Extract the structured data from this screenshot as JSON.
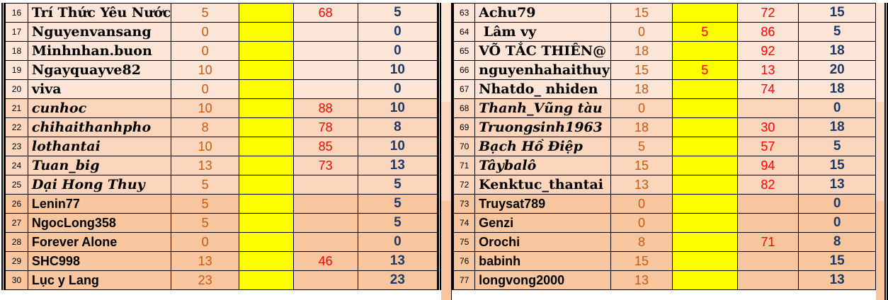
{
  "app": {
    "type": "spreadsheet-leaderboard"
  },
  "colors": {
    "row_light": "#fce4d6",
    "row_medium": "#fbd6bc",
    "row_dark": "#f7c69e",
    "cell_yellow": "#ffff00",
    "text_orange": "#c55a11",
    "text_red": "#ff0000",
    "text_blue": "#1f3864",
    "gridline": "#000000"
  },
  "tables": [
    {
      "id": "left",
      "rows": [
        {
          "num": "16",
          "name": "Trí Thức Yêu Nước",
          "font": "serif",
          "value": "5",
          "bonus": "",
          "rate": "68",
          "total": "5",
          "shade": "light"
        },
        {
          "num": "17",
          "name": "Nguyenvansang",
          "font": "serif",
          "value": "0",
          "bonus": "",
          "rate": "",
          "total": "0",
          "shade": "light"
        },
        {
          "num": "18",
          "name": "Minhnhan.buon",
          "font": "serif",
          "value": "0",
          "bonus": "",
          "rate": "",
          "total": "0",
          "shade": "light"
        },
        {
          "num": "19",
          "name": "Ngayquayve82",
          "font": "serif",
          "value": "10",
          "bonus": "",
          "rate": "",
          "total": "10",
          "shade": "light"
        },
        {
          "num": "20",
          "name": "viva",
          "font": "serif",
          "value": "0",
          "bonus": "",
          "rate": "",
          "total": "0",
          "shade": "light"
        },
        {
          "num": "21",
          "name": "cunhoc",
          "font": "serif-italic",
          "value": "10",
          "bonus": "",
          "rate": "88",
          "total": "10",
          "shade": "medium"
        },
        {
          "num": "22",
          "name": "chihaithanhpho",
          "font": "serif-italic",
          "value": "8",
          "bonus": "",
          "rate": "78",
          "total": "8",
          "shade": "medium"
        },
        {
          "num": "23",
          "name": "lothantai",
          "font": "serif-italic",
          "value": "10",
          "bonus": "",
          "rate": "85",
          "total": "10",
          "shade": "medium"
        },
        {
          "num": "24",
          "name": "Tuan_big",
          "font": "serif-italic",
          "value": "13",
          "bonus": "",
          "rate": "73",
          "total": "13",
          "shade": "medium"
        },
        {
          "num": "25",
          "name": "Dại Hong Thuy",
          "font": "serif-italic",
          "value": "5",
          "bonus": "",
          "rate": "",
          "total": "5",
          "shade": "medium"
        },
        {
          "num": "26",
          "name": "Lenin77",
          "font": "sans",
          "value": "5",
          "bonus": "",
          "rate": "",
          "total": "5",
          "shade": "dark"
        },
        {
          "num": "27",
          "name": "NgocLong358",
          "font": "sans",
          "value": "5",
          "bonus": "",
          "rate": "",
          "total": "5",
          "shade": "dark"
        },
        {
          "num": "28",
          "name": "Forever Alone",
          "font": "sans",
          "value": "0",
          "bonus": "",
          "rate": "",
          "total": "0",
          "shade": "dark"
        },
        {
          "num": "29",
          "name": "SHC998",
          "font": "sans",
          "value": "13",
          "bonus": "",
          "rate": "46",
          "total": "13",
          "shade": "dark"
        },
        {
          "num": "30",
          "name": "Lục y Lang",
          "font": "sans",
          "value": "23",
          "bonus": "",
          "rate": "",
          "total": "23",
          "shade": "dark"
        }
      ]
    },
    {
      "id": "right",
      "rows": [
        {
          "num": "63",
          "name": "Achu79",
          "font": "serif",
          "value": "15",
          "bonus": "",
          "rate": "72",
          "total": "15",
          "shade": "light"
        },
        {
          "num": "64",
          "name": " Lâm vy",
          "font": "serif",
          "value": "0",
          "bonus": "5",
          "rate": "86",
          "total": "5",
          "shade": "light"
        },
        {
          "num": "65",
          "name": "VÕ TẮC THIÊN@",
          "font": "serif",
          "value": "18",
          "bonus": "",
          "rate": "92",
          "total": "18",
          "shade": "light"
        },
        {
          "num": "66",
          "name": "nguyenhahaithuy",
          "font": "serif",
          "value": "15",
          "bonus": "5",
          "rate": "13",
          "total": "20",
          "shade": "light"
        },
        {
          "num": "67",
          "name": "Nhatdo_ nhiden",
          "font": "serif",
          "value": "18",
          "bonus": "",
          "rate": "74",
          "total": "18",
          "shade": "light"
        },
        {
          "num": "68",
          "name": "Thanh_Vũng tàu",
          "font": "serif-italic",
          "value": "0",
          "bonus": "",
          "rate": "",
          "total": "0",
          "shade": "medium"
        },
        {
          "num": "69",
          "name": "Truongsinh1963",
          "font": "serif-italic",
          "value": "18",
          "bonus": "",
          "rate": "30",
          "total": "18",
          "shade": "medium"
        },
        {
          "num": "70",
          "name": "Bạch Hồ Điệp",
          "font": "serif-italic",
          "value": "5",
          "bonus": "",
          "rate": "57",
          "total": "5",
          "shade": "medium"
        },
        {
          "num": "71",
          "name": "Tâybalô",
          "font": "serif-italic",
          "value": "15",
          "bonus": "",
          "rate": "94",
          "total": "15",
          "shade": "medium"
        },
        {
          "num": "72",
          "name": "Kenktuc_thantai",
          "font": "serif",
          "value": "13",
          "bonus": "",
          "rate": "82",
          "total": "13",
          "shade": "medium"
        },
        {
          "num": "73",
          "name": "Truysat789",
          "font": "sans",
          "value": "0",
          "bonus": "",
          "rate": "",
          "total": "0",
          "shade": "dark"
        },
        {
          "num": "74",
          "name": "Genzi",
          "font": "sans",
          "value": "0",
          "bonus": "",
          "rate": "",
          "total": "0",
          "shade": "dark"
        },
        {
          "num": "75",
          "name": "Orochi",
          "font": "sans",
          "value": "8",
          "bonus": "",
          "rate": "71",
          "total": "8",
          "shade": "dark"
        },
        {
          "num": "76",
          "name": "babinh",
          "font": "sans",
          "value": "15",
          "bonus": "",
          "rate": "",
          "total": "15",
          "shade": "dark"
        },
        {
          "num": "77",
          "name": "longvong2000",
          "font": "sans",
          "value": "13",
          "bonus": "",
          "rate": "",
          "total": "13",
          "shade": "dark"
        }
      ]
    }
  ]
}
